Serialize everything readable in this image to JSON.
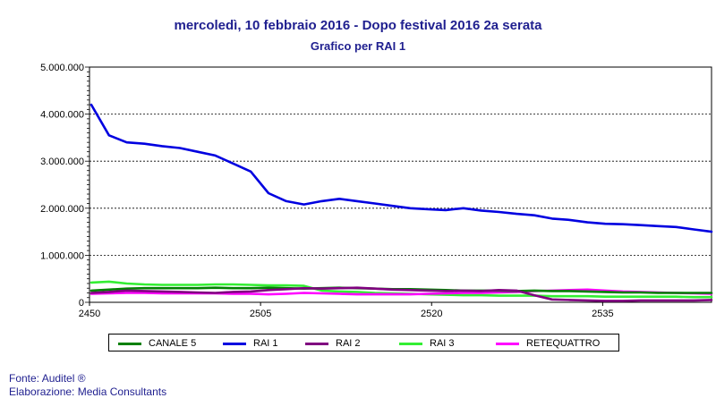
{
  "header": {
    "title": "mercoledì, 10 febbraio 2016 - Dopo festival 2016 2a serata",
    "subtitle": "Grafico per RAI 1"
  },
  "footer": {
    "source": "Fonte: Auditel ®",
    "processing": "Elaborazione: Media Consultants"
  },
  "chart_data": {
    "type": "line",
    "title": "mercoledì, 10 febbraio 2016 - Dopo festival 2016 2a serata",
    "subtitle": "Grafico per RAI 1",
    "xlabel": "",
    "ylabel": "",
    "x_ticks": [
      "2450",
      "2505",
      "2520",
      "2535"
    ],
    "y_ticks": [
      "0",
      "1.000.000",
      "2.000.000",
      "3.000.000",
      "4.000.000",
      "5.000.000"
    ],
    "ylim": [
      0,
      5000000
    ],
    "grid": "horizontal dashed",
    "legend_position": "bottom",
    "series": [
      {
        "name": "CANALE 5",
        "color": "#008000",
        "values": [
          250000,
          270000,
          290000,
          300000,
          300000,
          300000,
          300000,
          310000,
          300000,
          300000,
          310000,
          300000,
          290000,
          300000,
          310000,
          300000,
          290000,
          280000,
          280000,
          270000,
          260000,
          250000,
          250000,
          250000,
          240000,
          250000,
          240000,
          240000,
          230000,
          220000,
          210000,
          210000,
          200000,
          200000,
          200000,
          200000
        ]
      },
      {
        "name": "RAI 1",
        "color": "#0000e0",
        "values": [
          4200000,
          3550000,
          3400000,
          3370000,
          3320000,
          3280000,
          3200000,
          3120000,
          2950000,
          2780000,
          2320000,
          2150000,
          2080000,
          2150000,
          2200000,
          2150000,
          2100000,
          2050000,
          2000000,
          1980000,
          1960000,
          2000000,
          1950000,
          1920000,
          1880000,
          1850000,
          1780000,
          1750000,
          1700000,
          1670000,
          1660000,
          1640000,
          1620000,
          1600000,
          1550000,
          1500000
        ]
      },
      {
        "name": "RAI 2",
        "color": "#800080",
        "values": [
          200000,
          220000,
          250000,
          240000,
          230000,
          220000,
          210000,
          200000,
          220000,
          230000,
          260000,
          280000,
          300000,
          290000,
          300000,
          310000,
          290000,
          270000,
          260000,
          250000,
          240000,
          250000,
          240000,
          260000,
          250000,
          150000,
          60000,
          50000,
          40000,
          30000,
          30000,
          40000,
          40000,
          40000,
          40000,
          50000
        ]
      },
      {
        "name": "RAI 3",
        "color": "#33ee33",
        "values": [
          420000,
          440000,
          400000,
          380000,
          370000,
          370000,
          370000,
          380000,
          380000,
          370000,
          360000,
          360000,
          350000,
          250000,
          230000,
          220000,
          200000,
          190000,
          180000,
          170000,
          160000,
          150000,
          150000,
          140000,
          140000,
          140000,
          130000,
          130000,
          130000,
          120000,
          120000,
          120000,
          120000,
          120000,
          110000,
          110000
        ]
      },
      {
        "name": "RETEQUATTRO",
        "color": "#ff00ff",
        "values": [
          180000,
          190000,
          200000,
          200000,
          190000,
          190000,
          190000,
          190000,
          180000,
          180000,
          170000,
          180000,
          200000,
          190000,
          180000,
          170000,
          170000,
          170000,
          170000,
          180000,
          190000,
          200000,
          200000,
          210000,
          220000,
          240000,
          250000,
          260000,
          270000,
          250000,
          230000,
          220000,
          210000,
          200000,
          190000,
          180000
        ]
      }
    ]
  }
}
